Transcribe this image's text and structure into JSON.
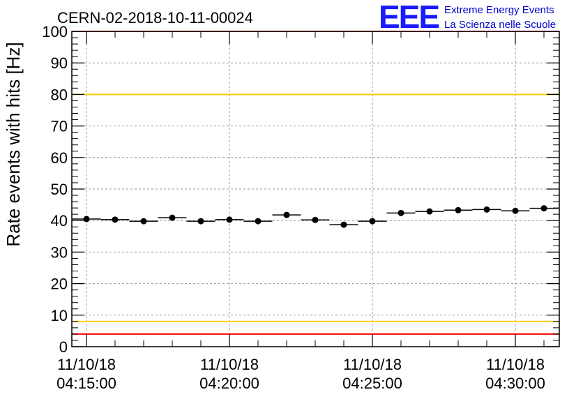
{
  "chart_data": {
    "type": "scatter",
    "title": "CERN-02-2018-10-11-00024",
    "ylabel": "Rate events with hits [Hz]",
    "xlabel": "",
    "ylim": [
      0,
      100
    ],
    "x_ticks": [
      {
        "date": "11/10/18",
        "time": "04:15:00"
      },
      {
        "date": "11/10/18",
        "time": "04:20:00"
      },
      {
        "date": "11/10/18",
        "time": "04:25:00"
      },
      {
        "date": "11/10/18",
        "time": "04:30:00"
      }
    ],
    "y_ticks": [
      "0",
      "10",
      "20",
      "30",
      "40",
      "50",
      "60",
      "70",
      "80",
      "90",
      "100"
    ],
    "grid": true,
    "series": [
      {
        "x": [
          "04:15:00",
          "04:16:00",
          "04:17:00",
          "04:18:00",
          "04:19:00",
          "04:20:00",
          "04:21:00",
          "04:22:00",
          "04:23:00",
          "04:24:00",
          "04:25:00",
          "04:26:00",
          "04:27:00",
          "04:28:00",
          "04:29:00",
          "04:30:00",
          "04:31:00"
        ],
        "values": [
          40.5,
          40.3,
          39.8,
          40.9,
          39.8,
          40.3,
          39.8,
          41.8,
          40.2,
          38.7,
          39.8,
          42.4,
          42.9,
          43.3,
          43.5,
          43.1,
          43.9
        ],
        "x_halfwidth_min": 0.5,
        "color": "#000000"
      }
    ],
    "reference_lines": [
      {
        "y": 100,
        "color": "#ff0000"
      },
      {
        "y": 80,
        "color": "#ffcc00"
      },
      {
        "y": 8,
        "color": "#ffcc00"
      },
      {
        "y": 4,
        "color": "#ff0000"
      }
    ]
  },
  "logo": {
    "mark": "EEE",
    "line1": "Extreme Energy Events",
    "line2": "La Scienza nelle Scuole",
    "color": "#1a1aff"
  }
}
